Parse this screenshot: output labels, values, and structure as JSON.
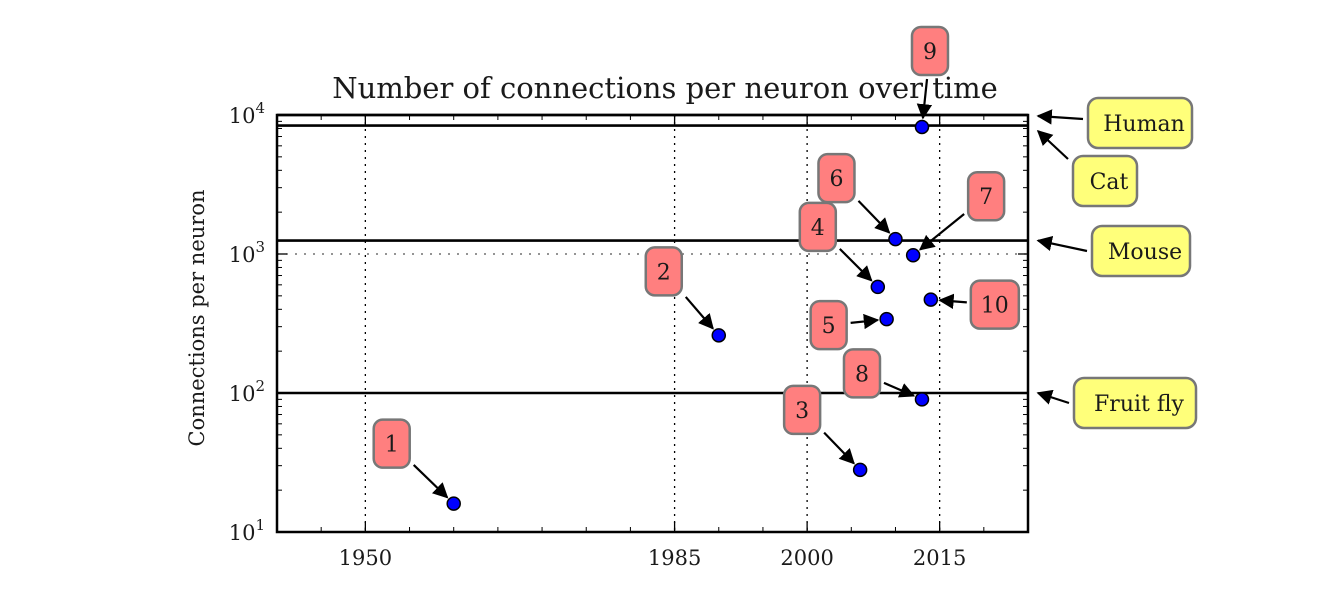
{
  "chart_data": {
    "type": "scatter",
    "title": "Number of connections per neuron over time",
    "xlabel": "",
    "ylabel": "Connections per neuron",
    "xlim": [
      1940,
      2025
    ],
    "ylim": [
      10,
      10000
    ],
    "yscale": "log",
    "xticks": [
      "1950",
      "1985",
      "2000",
      "2015"
    ],
    "yticks": [
      {
        "base": "10",
        "exp": "1"
      },
      {
        "base": "10",
        "exp": "2"
      },
      {
        "base": "10",
        "exp": "3"
      },
      {
        "base": "10",
        "exp": "4"
      }
    ],
    "grid": "dotted at ticks",
    "points": [
      {
        "label": "1",
        "x": 1960,
        "y": 16
      },
      {
        "label": "2",
        "x": 1990,
        "y": 260
      },
      {
        "label": "3",
        "x": 2006,
        "y": 28
      },
      {
        "label": "4",
        "x": 2008,
        "y": 580
      },
      {
        "label": "5",
        "x": 2009,
        "y": 340
      },
      {
        "label": "6",
        "x": 2010,
        "y": 1280
      },
      {
        "label": "7",
        "x": 2012,
        "y": 980
      },
      {
        "label": "8",
        "x": 2013,
        "y": 90
      },
      {
        "label": "9",
        "x": 2013,
        "y": 8200
      },
      {
        "label": "10",
        "x": 2014,
        "y": 470
      }
    ],
    "reference_lines": [
      {
        "label": "Fruit fly",
        "y": 100
      },
      {
        "label": "Mouse",
        "y": 1250
      },
      {
        "label": "Cat",
        "y": 8400
      },
      {
        "label": "Human",
        "y": 10000
      }
    ],
    "colors": {
      "point": "#0000ff",
      "annotation_box": "#ff7f7f",
      "reference_box": "#ffff7a"
    }
  }
}
